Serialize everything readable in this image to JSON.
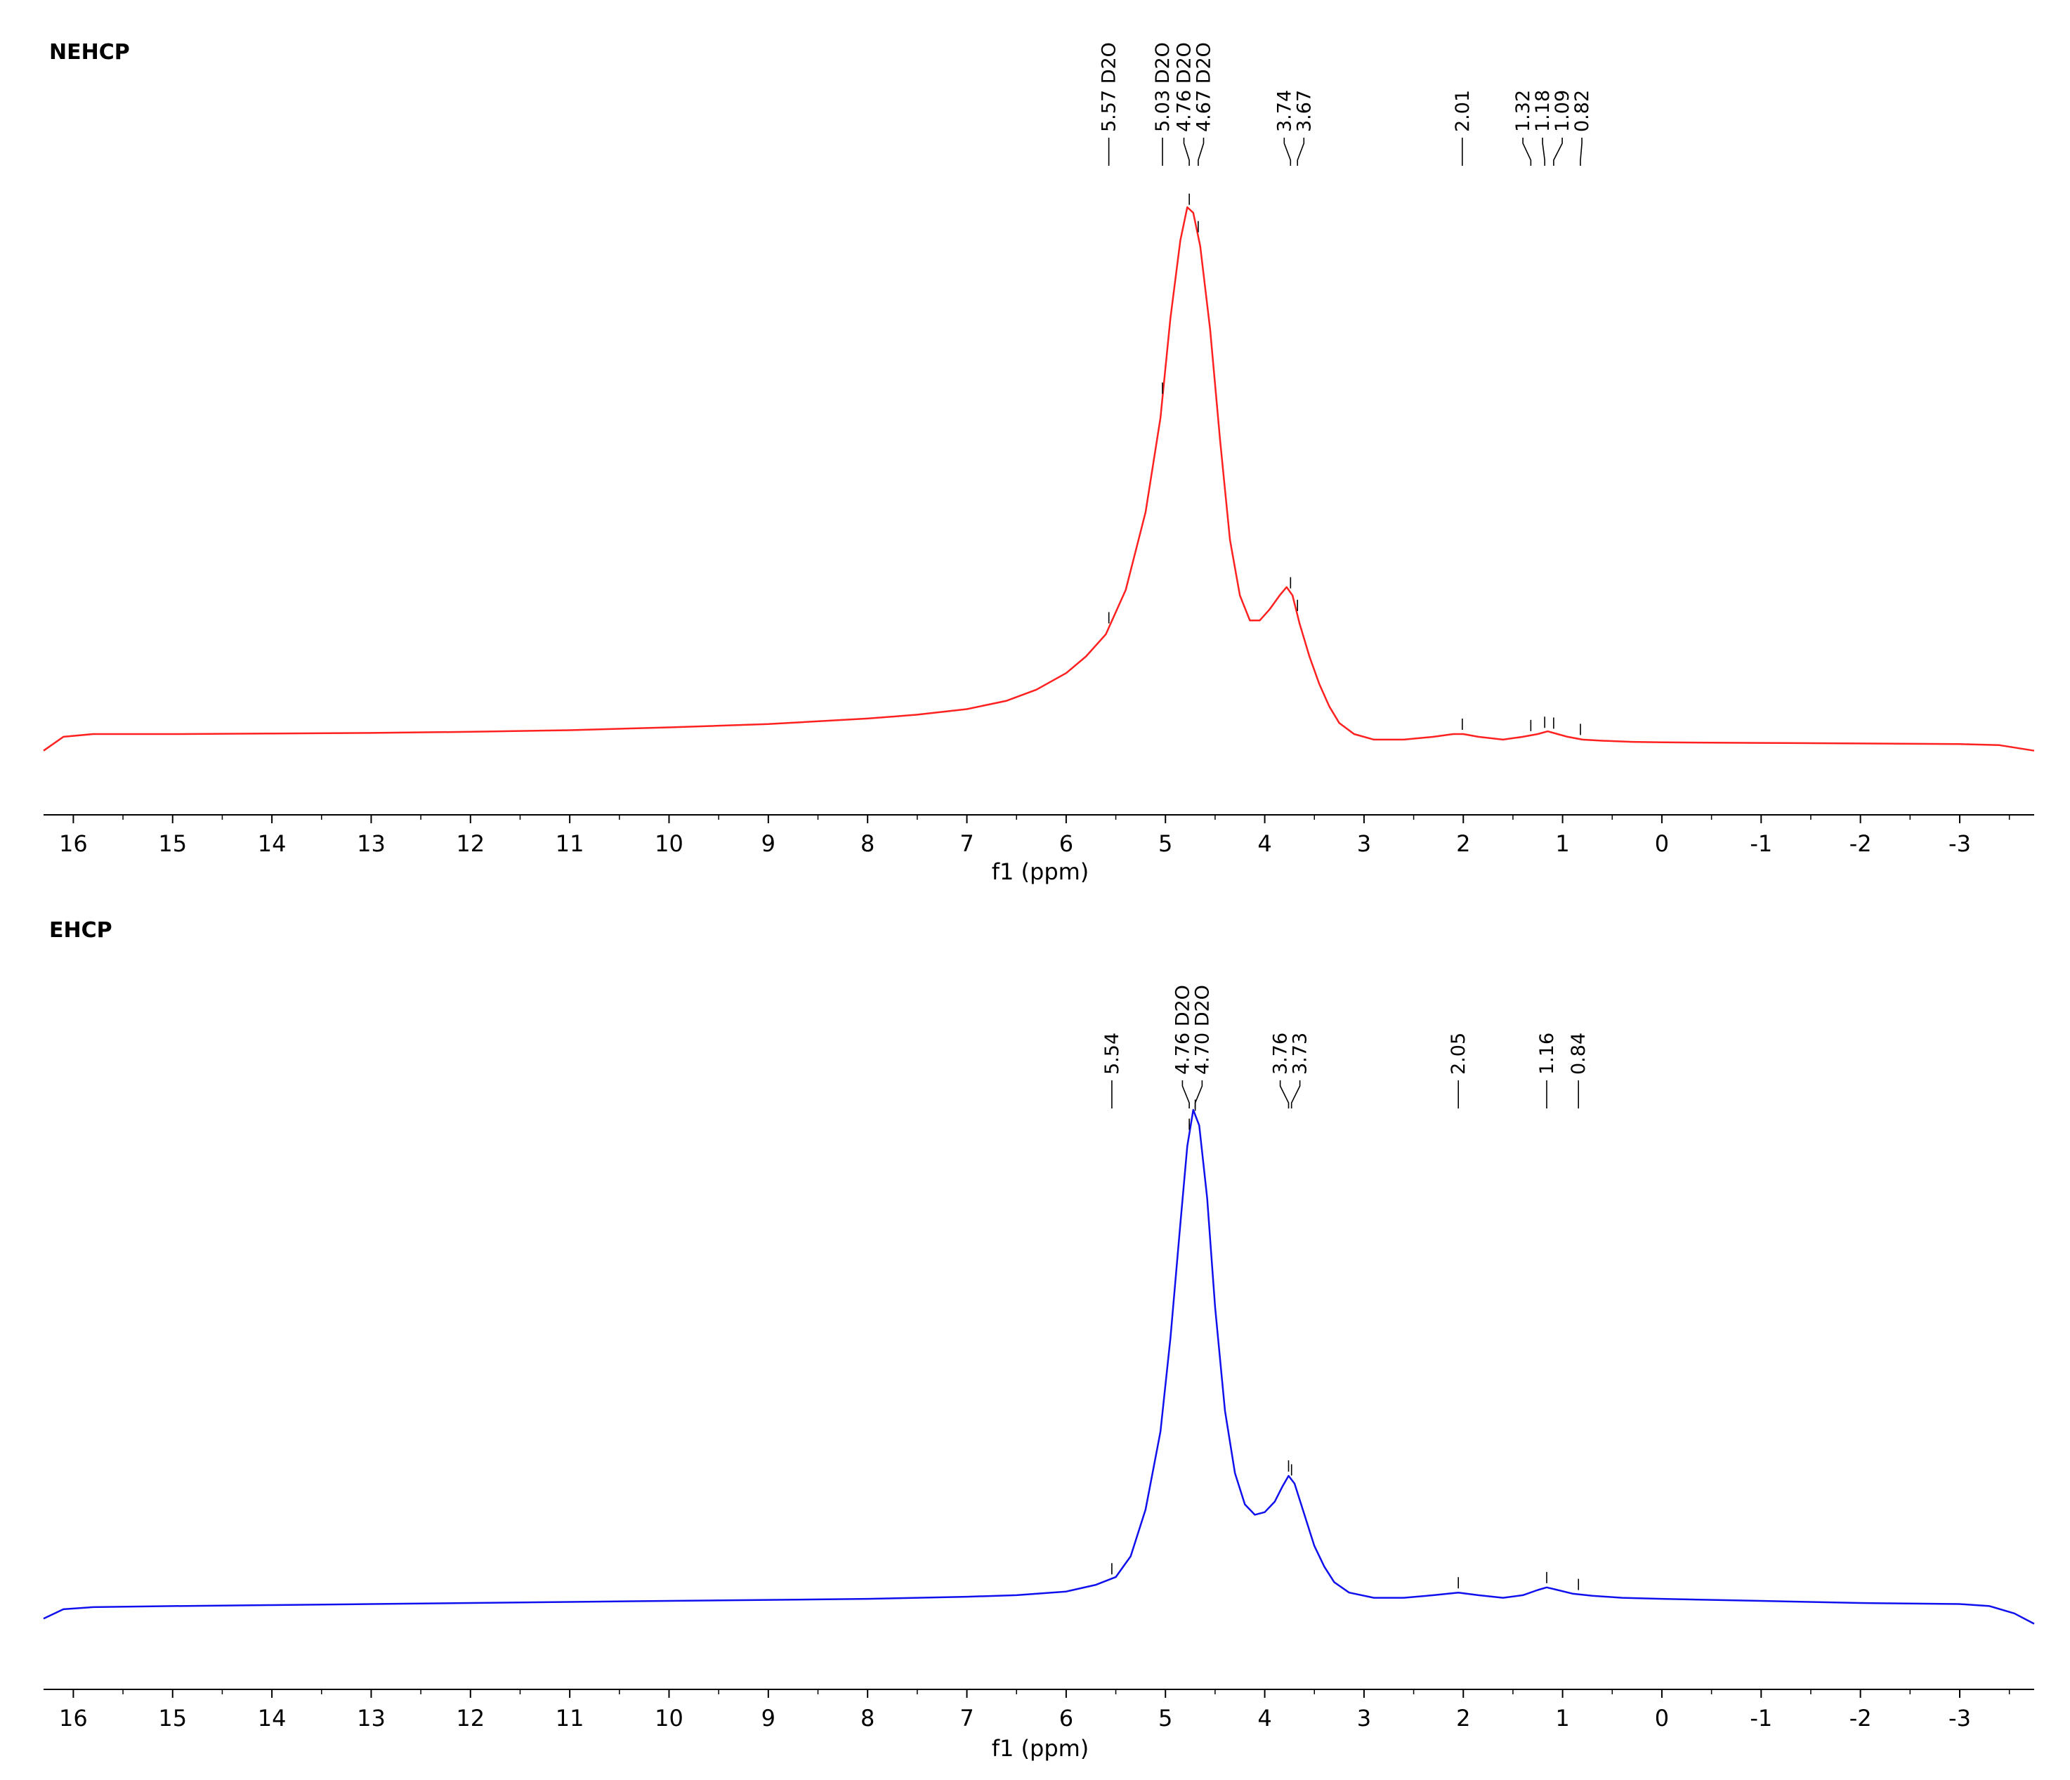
{
  "chart_data": [
    {
      "type": "line",
      "title": "NEHCP",
      "xlabel": "f1 (ppm)",
      "xlim": [
        16.3,
        -3.75
      ],
      "x_reversed": true,
      "x_ticks": [
        "16",
        "15",
        "14",
        "13",
        "12",
        "11",
        "10",
        "9",
        "8",
        "7",
        "6",
        "5",
        "4",
        "3",
        "2",
        "1",
        "0",
        "-1",
        "-2",
        "-3"
      ],
      "color": "#ff2020",
      "peak_labels": [
        {
          "ppm": 5.57,
          "text": "5.57 D2O"
        },
        {
          "ppm": 5.03,
          "text": "5.03 D2O"
        },
        {
          "ppm": 4.76,
          "text": "4.76 D2O"
        },
        {
          "ppm": 4.67,
          "text": "4.67 D2O"
        },
        {
          "ppm": 3.74,
          "text": "3.74"
        },
        {
          "ppm": 3.67,
          "text": "3.67"
        },
        {
          "ppm": 2.01,
          "text": "2.01"
        },
        {
          "ppm": 1.32,
          "text": "1.32"
        },
        {
          "ppm": 1.18,
          "text": "1.18"
        },
        {
          "ppm": 1.09,
          "text": "1.09"
        },
        {
          "ppm": 0.82,
          "text": "0.82"
        }
      ],
      "series": [
        {
          "x": [
            16.3,
            16.1,
            15.8,
            15,
            14,
            13,
            12,
            11,
            10,
            9,
            8,
            7.5,
            7,
            6.6,
            6.3,
            6.0,
            5.8,
            5.6,
            5.4,
            5.2,
            5.05,
            4.95,
            4.85,
            4.78,
            4.72,
            4.65,
            4.55,
            4.45,
            4.35,
            4.25,
            4.15,
            4.05,
            3.95,
            3.85,
            3.78,
            3.72,
            3.65,
            3.55,
            3.45,
            3.35,
            3.25,
            3.1,
            2.9,
            2.6,
            2.3,
            2.1,
            2.0,
            1.85,
            1.6,
            1.4,
            1.25,
            1.15,
            1.05,
            0.95,
            0.8,
            0.6,
            0.3,
            0,
            -1,
            -2,
            -3,
            -3.4,
            -3.75
          ],
          "y": [
            0.02,
            0.045,
            0.05,
            0.05,
            0.051,
            0.052,
            0.054,
            0.057,
            0.062,
            0.068,
            0.078,
            0.085,
            0.095,
            0.11,
            0.13,
            0.16,
            0.19,
            0.23,
            0.31,
            0.45,
            0.62,
            0.8,
            0.94,
            1.0,
            0.99,
            0.93,
            0.78,
            0.58,
            0.4,
            0.3,
            0.255,
            0.255,
            0.275,
            0.3,
            0.315,
            0.3,
            0.25,
            0.19,
            0.14,
            0.1,
            0.07,
            0.05,
            0.04,
            0.04,
            0.045,
            0.05,
            0.05,
            0.045,
            0.04,
            0.045,
            0.05,
            0.055,
            0.05,
            0.045,
            0.04,
            0.038,
            0.036,
            0.035,
            0.034,
            0.033,
            0.032,
            0.03,
            0.02
          ]
        }
      ]
    },
    {
      "type": "line",
      "title": "EHCP",
      "xlabel": "f1 (ppm)",
      "xlim": [
        16.3,
        -3.75
      ],
      "x_reversed": true,
      "x_ticks": [
        "16",
        "15",
        "14",
        "13",
        "12",
        "11",
        "10",
        "9",
        "8",
        "7",
        "6",
        "5",
        "4",
        "3",
        "2",
        "1",
        "0",
        "-1",
        "-2",
        "-3"
      ],
      "color": "#1010ee",
      "peak_labels": [
        {
          "ppm": 5.54,
          "text": "5.54"
        },
        {
          "ppm": 4.76,
          "text": "4.76 D2O"
        },
        {
          "ppm": 4.7,
          "text": "4.70 D2O"
        },
        {
          "ppm": 3.76,
          "text": "3.76"
        },
        {
          "ppm": 3.73,
          "text": "3.73"
        },
        {
          "ppm": 2.05,
          "text": "2.05"
        },
        {
          "ppm": 1.16,
          "text": "1.16"
        },
        {
          "ppm": 0.84,
          "text": "0.84"
        }
      ],
      "series": [
        {
          "x": [
            16.3,
            16.1,
            15.8,
            15,
            14,
            13,
            12,
            11,
            10,
            9,
            8,
            7.5,
            7,
            6.5,
            6.0,
            5.7,
            5.5,
            5.35,
            5.2,
            5.05,
            4.95,
            4.85,
            4.78,
            4.72,
            4.66,
            4.58,
            4.5,
            4.4,
            4.3,
            4.2,
            4.1,
            4.0,
            3.9,
            3.82,
            3.76,
            3.7,
            3.6,
            3.5,
            3.4,
            3.3,
            3.15,
            2.9,
            2.6,
            2.3,
            2.05,
            1.85,
            1.6,
            1.4,
            1.25,
            1.16,
            1.05,
            0.9,
            0.7,
            0.4,
            0,
            -1,
            -2,
            -3,
            -3.3,
            -3.55,
            -3.75
          ],
          "y": [
            0.02,
            0.038,
            0.042,
            0.044,
            0.046,
            0.048,
            0.05,
            0.052,
            0.054,
            0.056,
            0.058,
            0.06,
            0.062,
            0.065,
            0.072,
            0.085,
            0.1,
            0.14,
            0.23,
            0.38,
            0.56,
            0.78,
            0.93,
            1.0,
            0.97,
            0.83,
            0.62,
            0.42,
            0.3,
            0.24,
            0.22,
            0.225,
            0.245,
            0.275,
            0.295,
            0.28,
            0.22,
            0.16,
            0.12,
            0.09,
            0.07,
            0.06,
            0.06,
            0.065,
            0.07,
            0.065,
            0.06,
            0.065,
            0.075,
            0.08,
            0.075,
            0.068,
            0.064,
            0.06,
            0.058,
            0.054,
            0.05,
            0.048,
            0.044,
            0.03,
            0.01
          ]
        }
      ]
    }
  ]
}
